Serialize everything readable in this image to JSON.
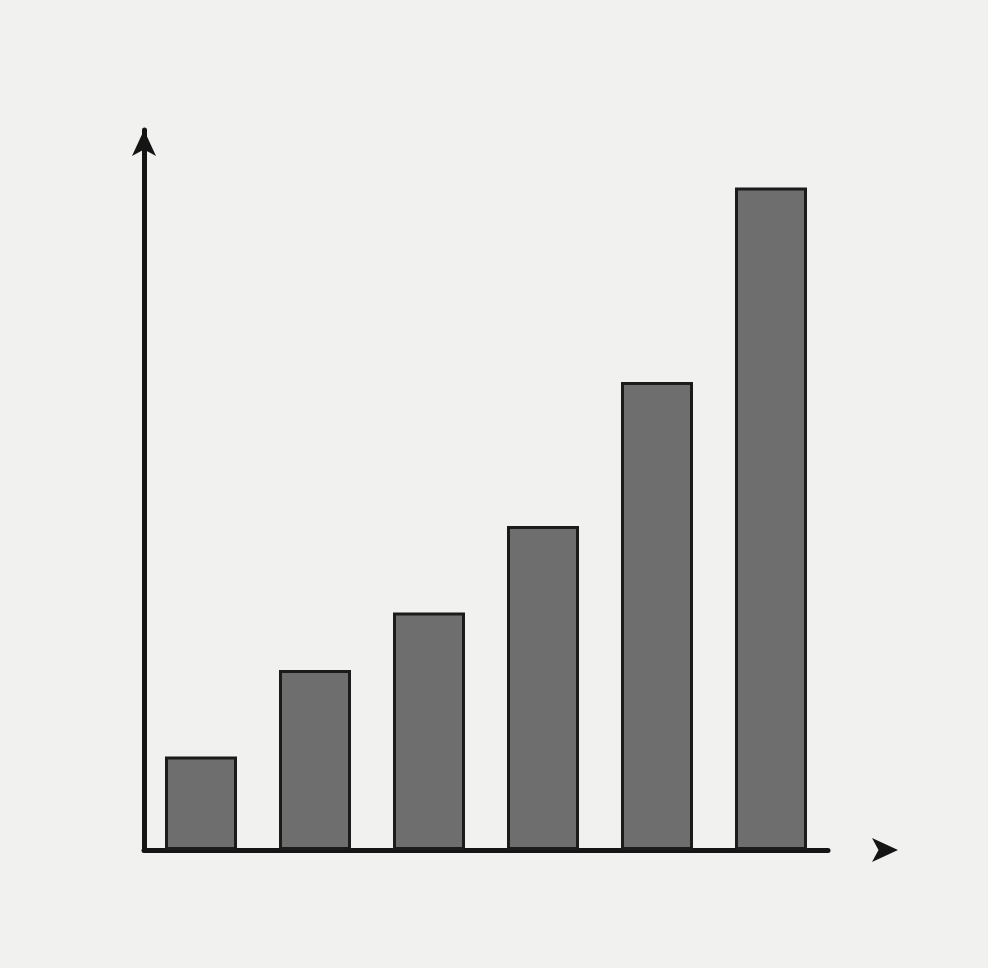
{
  "chart_data": {
    "type": "bar",
    "categories": [
      null,
      null,
      null,
      null,
      null,
      null
    ],
    "values": [
      13,
      25,
      33,
      45,
      65,
      92
    ],
    "color": "#6e6e6e",
    "ylim": [
      0,
      100
    ],
    "grid": false,
    "tick_labels": false
  }
}
